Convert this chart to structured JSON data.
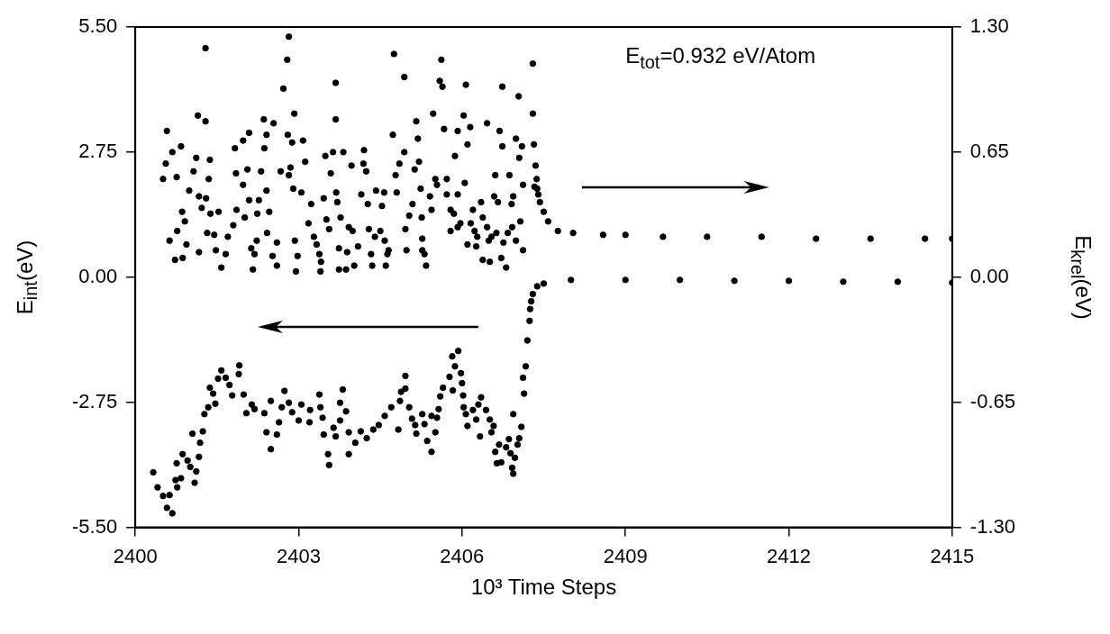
{
  "chart_data": {
    "type": "scatter",
    "xlabel": "10³ Time Steps",
    "ylabel": "E$_{int}$(eV)",
    "y2label": "E$_{krel}$(eV)",
    "xlim": [
      2400,
      2415
    ],
    "xticks": [
      2400,
      2403,
      2406,
      2409,
      2412,
      2415
    ],
    "ylim": [
      -5.5,
      5.5
    ],
    "yticks": [
      {
        "value": -5.5,
        "label": "-5.50"
      },
      {
        "value": -2.75,
        "label": "-2.75"
      },
      {
        "value": 0,
        "label": "0.00"
      },
      {
        "value": 2.75,
        "label": "2.75"
      },
      {
        "value": 5.5,
        "label": "5.50"
      }
    ],
    "y2lim": [
      -1.3,
      1.3
    ],
    "y2ticks": [
      {
        "value": -1.3,
        "label": "-1.30"
      },
      {
        "value": -0.65,
        "label": "-0.65"
      },
      {
        "value": 0,
        "label": "0.00"
      },
      {
        "value": 0.65,
        "label": "0.65"
      },
      {
        "value": 1.3,
        "label": "1.30"
      }
    ],
    "marker": "circle",
    "annotations": [
      "E$_{tot}$=0.932 eV/Atom"
    ],
    "series": [
      {
        "color": "#000000",
        "axis": "y2",
        "x": [
          2401.29,
          2402.82,
          2402.79,
          2402.72,
          2403.68,
          2403.68,
          2404.75,
          2402.92,
          2401.15,
          2401.29,
          2400.58,
          2400.68,
          2400.84,
          2401.12,
          2401.37,
          2400.56,
          2400.51,
          2400.76,
          2401.07,
          2401.35,
          2400.99,
          2401.17,
          2401.3,
          2401.22,
          2400.86,
          2400.91,
          2400.77,
          2400.63,
          2400.94,
          2400.73,
          2400.87,
          2401.17,
          2401.38,
          2401.53,
          2401.32,
          2401.45,
          2401.48,
          2401.58,
          2401.7,
          2401.66,
          2401.83,
          2401.98,
          2402.09,
          2402.37,
          2402.36,
          2402.54,
          2402.41,
          2401.85,
          2401.98,
          2402.06,
          2402.31,
          2402.09,
          2402.27,
          2402.41,
          2401.86,
          2401.8,
          2402.01,
          2402.24,
          2402.46,
          2402.23,
          2402.13,
          2402.19,
          2402.16,
          2402.42,
          2402.6,
          2402.52,
          2402.6,
          2402.67,
          2402.82,
          2402.85,
          2402.8,
          2402.88,
          2403.08,
          2403.12,
          2402.9,
          2403.05,
          2403.23,
          2403.18,
          2403.28,
          2403.33,
          2402.93,
          2402.98,
          2402.95,
          2403.38,
          2403.41,
          2403.4,
          2403.49,
          2403.63,
          2403.82,
          2403.59,
          2403.46,
          2403.69,
          2403.71,
          2403.51,
          2403.56,
          2403.77,
          2403.92,
          2403.99,
          2403.74,
          2403.89,
          2403.74,
          2403.87,
          2404.02,
          2404.09,
          2403.97,
          2404.19,
          2404.24,
          2404.2,
          2404.15,
          2404.27,
          2404.29,
          2404.4,
          2404.5,
          2404.33,
          2404.35,
          2404.6,
          2404.63,
          2404.65,
          2404.58,
          2404.42,
          2404.57,
          2404.53,
          2404.8,
          2404.78,
          2404.85,
          2404.73,
          2404.94,
          2405.62,
          2405.59,
          2405.64,
          2406.07,
          2406.74,
          2407.04,
          2407.3,
          2407.3,
          2405.47,
          2406.03,
          2405.16,
          2405.67,
          2405.92,
          2406.15,
          2406.46,
          2406.69,
          2405.19,
          2406.1,
          2406.74,
          2406.99,
          2407.1,
          2407.32,
          2404.94,
          2405.87,
          2407.05,
          2405.21,
          2405.13,
          2405.51,
          2405.72,
          2405.54,
          2406.05,
          2406.61,
          2406.87,
          2407.12,
          2407.35,
          2407.37,
          2405.24,
          2405.41,
          2405.72,
          2405.92,
          2406.59,
          2406.66,
          2406.94,
          2406.91,
          2406.35,
          2405.09,
          2405.44,
          2405.03,
          2405.26,
          2405.79,
          2405.85,
          2406.2,
          2406.38,
          2407.07,
          2405.97,
          2405.92,
          2406.16,
          2406.46,
          2404.96,
          2405.79,
          2406.23,
          2406.63,
          2406.92,
          2406.84,
          2406.28,
          2406.54,
          2406.49,
          2405.27,
          2406.99,
          2406.1,
          2406.26,
          2406.76,
          2404.98,
          2405.27,
          2405.31,
          2407.12,
          2405.34,
          2406.38,
          2406.51,
          2406.72,
          2406.81,
          2407.33,
          2407.38,
          2407.4,
          2407.43,
          2407.5,
          2407.58,
          2407.76,
          2408.04,
          2408.59,
          2409.0,
          2409.69,
          2410.5,
          2411.5,
          2412.5,
          2413.5,
          2414.5,
          2415
        ],
        "values": [
          1.19,
          1.25,
          1.13,
          0.98,
          1.01,
          0.82,
          1.16,
          0.85,
          0.84,
          0.81,
          0.76,
          0.65,
          0.68,
          0.62,
          0.61,
          0.59,
          0.51,
          0.52,
          0.55,
          0.51,
          0.45,
          0.42,
          0.41,
          0.36,
          0.34,
          0.29,
          0.24,
          0.19,
          0.17,
          0.09,
          0.1,
          0.13,
          0.33,
          0.34,
          0.23,
          0.22,
          0.14,
          0.05,
          0.21,
          0.12,
          0.67,
          0.71,
          0.75,
          0.67,
          0.82,
          0.8,
          0.74,
          0.54,
          0.48,
          0.56,
          0.55,
          0.4,
          0.4,
          0.45,
          0.35,
          0.27,
          0.31,
          0.33,
          0.34,
          0.19,
          0.15,
          0.12,
          0.04,
          0.23,
          0.18,
          0.11,
          0.06,
          0.55,
          0.53,
          0.57,
          0.74,
          0.7,
          0.71,
          0.6,
          0.46,
          0.44,
          0.38,
          0.28,
          0.21,
          0.17,
          0.19,
          0.11,
          0.03,
          0.12,
          0.08,
          0.03,
          0.63,
          0.65,
          0.65,
          0.54,
          0.41,
          0.44,
          0.39,
          0.3,
          0.25,
          0.31,
          0.26,
          0.24,
          0.15,
          0.13,
          0.04,
          0.04,
          0.06,
          0.16,
          0.58,
          0.59,
          0.55,
          0.66,
          0.43,
          0.38,
          0.25,
          0.21,
          0.24,
          0.12,
          0.06,
          0.06,
          0.12,
          0.14,
          0.19,
          0.45,
          0.44,
          0.37,
          0.44,
          0.53,
          0.59,
          0.74,
          1.04,
          1.13,
          1.02,
          0.99,
          1.0,
          0.99,
          0.94,
          1.11,
          0.85,
          0.85,
          0.84,
          0.81,
          0.77,
          0.76,
          0.78,
          0.8,
          0.76,
          0.72,
          0.69,
          0.68,
          0.72,
          0.68,
          0.69,
          0.65,
          0.63,
          0.62,
          0.6,
          0.56,
          0.51,
          0.51,
          0.48,
          0.49,
          0.53,
          0.53,
          0.48,
          0.58,
          0.51,
          0.46,
          0.42,
          0.43,
          0.43,
          0.42,
          0.39,
          0.42,
          0.38,
          0.39,
          0.38,
          0.35,
          0.32,
          0.31,
          0.35,
          0.33,
          0.35,
          0.31,
          0.29,
          0.28,
          0.26,
          0.28,
          0.26,
          0.25,
          0.24,
          0.24,
          0.23,
          0.26,
          0.23,
          0.21,
          0.21,
          0.19,
          0.2,
          0.19,
          0.17,
          0.16,
          0.18,
          0.14,
          0.14,
          0.12,
          0.14,
          0.06,
          0.09,
          0.08,
          0.1,
          0.05,
          0.47,
          0.46,
          0.43,
          0.39,
          0.34,
          0.29,
          0.24,
          0.23,
          0.22,
          0.22,
          0.21,
          0.21,
          0.21,
          0.2,
          0.2,
          0.2,
          0.2
        ]
      },
      {
        "color": "#000000",
        "x": [
          2400.33,
          2400.41,
          2400.51,
          2400.63,
          2400.58,
          2400.68,
          2400.77,
          2400.74,
          2400.84,
          2400.76,
          2400.87,
          2400.96,
          2401.01,
          2401.12,
          2401.09,
          2401.17,
          2401.19,
          2401.05,
          2401.24,
          2401.27,
          2401.34,
          2401.37,
          2401.47,
          2401.43,
          2401.52,
          2401.58,
          2401.66,
          2401.73,
          2401.78,
          2401.9,
          2401.91,
          2401.99,
          2402.04,
          2402.14,
          2402.19,
          2402.37,
          2402.41,
          2402.49,
          2402.49,
          2402.6,
          2402.64,
          2402.69,
          2402.74,
          2402.82,
          2402.88,
          2403.0,
          2403.05,
          2403.2,
          2403.21,
          2403.4,
          2403.38,
          2403.44,
          2403.46,
          2403.54,
          2403.56,
          2403.64,
          2403.68,
          2403.76,
          2403.81,
          2403.76,
          2403.87,
          2403.92,
          2403.92,
          2404.04,
          2404.14,
          2404.25,
          2404.37,
          2404.47,
          2404.58,
          2404.7,
          2404.83,
          2404.86,
          2404.88,
          2404.96,
          2404.96,
          2405.03,
          2405.08,
          2405.14,
          2405.16,
          2405.27,
          2405.31,
          2405.36,
          2405.44,
          2405.44,
          2405.51,
          2405.54,
          2405.57,
          2405.6,
          2405.65,
          2405.77,
          2405.83,
          2405.82,
          2405.93,
          2405.87,
          2405.98,
          2406.0,
          2406.02,
          2406.03,
          2406.07,
          2406.1,
          2406.2,
          2406.26,
          2406.3,
          2406.35,
          2406.33,
          2406.44,
          2406.51,
          2406.58,
          2406.54,
          2406.61,
          2406.68,
          2406.64,
          2406.72,
          2406.81,
          2406.86,
          2406.89,
          2406.92,
          2406.94,
          2406.97,
          2407.02,
          2407.05,
          2406.94,
          2407.09,
          2407.14,
          2407.12,
          2407.17,
          2407.2,
          2407.24,
          2407.25,
          2407.27,
          2407.3,
          2407.38,
          2407.5,
          2408.0,
          2409.0,
          2410.0,
          2411.0,
          2412.0,
          2413.0,
          2414.0,
          2415.0
        ],
        "values": [
          -4.29,
          -4.62,
          -4.81,
          -4.79,
          -5.07,
          -5.19,
          -4.62,
          -4.46,
          -4.42,
          -4.09,
          -3.89,
          -4.03,
          -4.17,
          -4.27,
          -4.52,
          -3.95,
          -3.64,
          -3.44,
          -3.39,
          -3.01,
          -2.86,
          -2.43,
          -2.78,
          -2.56,
          -2.23,
          -2.05,
          -2.21,
          -2.37,
          -2.6,
          -2.13,
          -1.94,
          -2.58,
          -2.99,
          -2.8,
          -2.9,
          -2.99,
          -3.41,
          -2.72,
          -3.78,
          -3.46,
          -3.19,
          -2.86,
          -2.5,
          -2.76,
          -2.97,
          -3.15,
          -2.8,
          -3.19,
          -2.92,
          -2.86,
          -2.58,
          -3.09,
          -3.46,
          -3.89,
          -4.13,
          -3.31,
          -3.5,
          -3.15,
          -2.47,
          -2.76,
          -2.95,
          -3.89,
          -3.41,
          -3.64,
          -3.39,
          -3.54,
          -3.35,
          -3.25,
          -3.05,
          -2.86,
          -3.35,
          -2.72,
          -2.52,
          -2.45,
          -2.17,
          -2.86,
          -3.11,
          -3.25,
          -3.44,
          -3.01,
          -3.23,
          -3.6,
          -3.84,
          -3.05,
          -3.41,
          -3.09,
          -2.9,
          -2.62,
          -2.43,
          -2.19,
          -2.49,
          -1.74,
          -1.62,
          -1.96,
          -2.11,
          -2.33,
          -2.6,
          -2.86,
          -3.01,
          -3.27,
          -2.92,
          -3.13,
          -2.8,
          -2.64,
          -3.5,
          -2.92,
          -3.13,
          -3.27,
          -3.41,
          -3.84,
          -3.68,
          -4.09,
          -4.07,
          -3.74,
          -3.56,
          -3.87,
          -4.19,
          -4.32,
          -3.97,
          -3.68,
          -3.54,
          -3.01,
          -3.29,
          -2.56,
          -2.21,
          -1.96,
          -1.39,
          -0.96,
          -0.7,
          -0.53,
          -0.37,
          -0.2,
          -0.14,
          -0.06,
          -0.06,
          -0.06,
          -0.08,
          -0.08,
          -0.1,
          -0.1,
          -0.12
        ]
      }
    ]
  }
}
